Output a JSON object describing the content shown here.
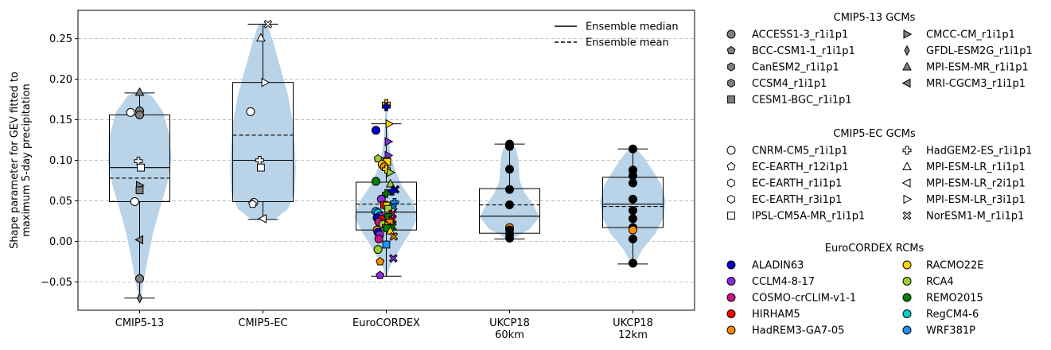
{
  "chart_data": {
    "type": "violin+box+strip",
    "ylabel_lines": [
      "Shape parameter for GEV fitted to",
      "maximum 5-day precipitation"
    ],
    "ylim": [
      -0.085,
      0.285
    ],
    "yticks": [
      -0.05,
      0.0,
      0.05,
      0.1,
      0.15,
      0.2,
      0.25
    ],
    "ytick_labels": [
      "−0.05",
      "0.00",
      "0.05",
      "0.10",
      "0.15",
      "0.20",
      "0.25"
    ],
    "grid": "horizontal dashed",
    "categories": [
      [
        "CMIP5-13"
      ],
      [
        "CMIP5-EC"
      ],
      [
        "EuroCORDEX"
      ],
      [
        "UKCP18",
        "60km"
      ],
      [
        "UKCP18",
        "12km"
      ]
    ],
    "violins": [
      {
        "min": -0.07,
        "max": 0.183,
        "profile": [
          [
            -0.07,
            0.02
          ],
          [
            -0.05,
            0.12
          ],
          [
            -0.02,
            0.25
          ],
          [
            0.01,
            0.4
          ],
          [
            0.04,
            0.6
          ],
          [
            0.07,
            0.82
          ],
          [
            0.1,
            0.95
          ],
          [
            0.13,
            0.9
          ],
          [
            0.16,
            0.7
          ],
          [
            0.18,
            0.35
          ],
          [
            0.183,
            0.15
          ]
        ]
      },
      {
        "min": 0.027,
        "max": 0.268,
        "profile": [
          [
            0.027,
            0.35
          ],
          [
            0.04,
            0.75
          ],
          [
            0.06,
            0.95
          ],
          [
            0.09,
            0.98
          ],
          [
            0.12,
            0.95
          ],
          [
            0.15,
            0.88
          ],
          [
            0.18,
            0.75
          ],
          [
            0.21,
            0.55
          ],
          [
            0.24,
            0.35
          ],
          [
            0.26,
            0.2
          ],
          [
            0.268,
            0.12
          ]
        ]
      },
      {
        "min": -0.043,
        "max": 0.17,
        "profile": [
          [
            -0.043,
            0.02
          ],
          [
            -0.03,
            0.12
          ],
          [
            -0.01,
            0.4
          ],
          [
            0.01,
            0.7
          ],
          [
            0.03,
            0.95
          ],
          [
            0.05,
            0.78
          ],
          [
            0.07,
            0.45
          ],
          [
            0.09,
            0.25
          ],
          [
            0.11,
            0.12
          ],
          [
            0.14,
            0.05
          ],
          [
            0.17,
            0.02
          ]
        ]
      },
      {
        "min": 0.003,
        "max": 0.12,
        "profile": [
          [
            0.003,
            0.08
          ],
          [
            0.015,
            0.6
          ],
          [
            0.03,
            0.9
          ],
          [
            0.045,
            0.7
          ],
          [
            0.06,
            0.45
          ],
          [
            0.075,
            0.3
          ],
          [
            0.09,
            0.28
          ],
          [
            0.105,
            0.25
          ],
          [
            0.115,
            0.18
          ],
          [
            0.12,
            0.08
          ]
        ]
      },
      {
        "min": -0.028,
        "max": 0.114,
        "profile": [
          [
            -0.028,
            0.05
          ],
          [
            -0.01,
            0.28
          ],
          [
            0.01,
            0.68
          ],
          [
            0.03,
            0.92
          ],
          [
            0.05,
            0.98
          ],
          [
            0.07,
            0.85
          ],
          [
            0.09,
            0.55
          ],
          [
            0.105,
            0.3
          ],
          [
            0.114,
            0.1
          ]
        ]
      }
    ],
    "boxes": [
      {
        "q1": 0.049,
        "median": 0.091,
        "q3": 0.156,
        "mean": 0.078,
        "whisker_low": -0.07,
        "whisker_high": 0.183
      },
      {
        "q1": 0.049,
        "median": 0.1,
        "q3": 0.196,
        "mean": 0.131,
        "whisker_low": 0.027,
        "whisker_high": 0.268
      },
      {
        "q1": 0.014,
        "median": 0.036,
        "q3": 0.073,
        "mean": 0.046,
        "whisker_low": -0.043,
        "whisker_high": 0.145
      },
      {
        "q1": 0.01,
        "median": 0.031,
        "q3": 0.065,
        "mean": 0.045,
        "whisker_low": 0.003,
        "whisker_high": 0.12
      },
      {
        "q1": 0.017,
        "median": 0.046,
        "q3": 0.079,
        "mean": 0.043,
        "whisker_low": -0.028,
        "whisker_high": 0.114
      }
    ],
    "points": [
      {
        "cat": 0,
        "dx": 0.0,
        "y": 0.184,
        "m": "^",
        "c": "#808080"
      },
      {
        "cat": 0,
        "dx": -0.22,
        "y": 0.159,
        "m": "o",
        "c": "#ffffff"
      },
      {
        "cat": 0,
        "dx": 0.0,
        "y": 0.161,
        "m": "o",
        "c": "#808080"
      },
      {
        "cat": 0,
        "dx": 0.0,
        "y": 0.156,
        "m": "o",
        "c": "#808080"
      },
      {
        "cat": 0,
        "dx": -0.03,
        "y": 0.099,
        "m": "P",
        "c": "#ffffff"
      },
      {
        "cat": 0,
        "dx": 0.03,
        "y": 0.091,
        "m": "s",
        "c": "#ffffff"
      },
      {
        "cat": 0,
        "dx": 0.0,
        "y": 0.069,
        "m": ">",
        "c": "#808080"
      },
      {
        "cat": 0,
        "dx": 0.0,
        "y": 0.063,
        "m": "s",
        "c": "#808080"
      },
      {
        "cat": 0,
        "dx": -0.12,
        "y": 0.049,
        "m": "o",
        "c": "#ffffff"
      },
      {
        "cat": 0,
        "dx": 0.0,
        "y": 0.002,
        "m": "<",
        "c": "#808080"
      },
      {
        "cat": 0,
        "dx": 0.0,
        "y": -0.046,
        "m": "o",
        "c": "#808080"
      },
      {
        "cat": 0,
        "dx": 0.0,
        "y": -0.07,
        "m": "d",
        "c": "#808080"
      },
      {
        "cat": 1,
        "dx": 0.12,
        "y": 0.268,
        "m": "X",
        "c": "#ffffff"
      },
      {
        "cat": 1,
        "dx": -0.05,
        "y": 0.251,
        "m": "^",
        "c": "#ffffff"
      },
      {
        "cat": 1,
        "dx": 0.05,
        "y": 0.196,
        "m": ">",
        "c": "#ffffff"
      },
      {
        "cat": 1,
        "dx": -0.3,
        "y": 0.16,
        "m": "o",
        "c": "#ffffff"
      },
      {
        "cat": 1,
        "dx": -0.08,
        "y": 0.1,
        "m": "P",
        "c": "#ffffff"
      },
      {
        "cat": 1,
        "dx": -0.05,
        "y": 0.091,
        "m": "s",
        "c": "#ffffff"
      },
      {
        "cat": 1,
        "dx": -0.22,
        "y": 0.048,
        "m": "o",
        "c": "#ffffff"
      },
      {
        "cat": 1,
        "dx": -0.25,
        "y": 0.046,
        "m": "p",
        "c": "#ffffff"
      },
      {
        "cat": 1,
        "dx": 0.0,
        "y": 0.028,
        "m": "<",
        "c": "#ffffff"
      },
      {
        "cat": 2,
        "dx": 0.0,
        "y": 0.17,
        "m": "P",
        "c": "#ffd700"
      },
      {
        "cat": 2,
        "dx": 0.0,
        "y": 0.166,
        "m": "P",
        "c": "#0000cd"
      },
      {
        "cat": 2,
        "dx": 0.07,
        "y": 0.145,
        "m": ">",
        "c": "#ffd700"
      },
      {
        "cat": 2,
        "dx": -0.25,
        "y": 0.137,
        "m": "o",
        "c": "#0000cd"
      },
      {
        "cat": 2,
        "dx": 0.05,
        "y": 0.123,
        "m": ">",
        "c": "#8a2be2"
      },
      {
        "cat": 2,
        "dx": 0.05,
        "y": 0.106,
        "m": ">",
        "c": "#8a2be2"
      },
      {
        "cat": 2,
        "dx": -0.2,
        "y": 0.102,
        "m": "p",
        "c": "#9acd32"
      },
      {
        "cat": 2,
        "dx": 0.0,
        "y": 0.099,
        "m": "s",
        "c": "#ff0000"
      },
      {
        "cat": 2,
        "dx": 0.02,
        "y": 0.098,
        "m": "s",
        "c": "#ffd700"
      },
      {
        "cat": 2,
        "dx": -0.1,
        "y": 0.095,
        "m": "o",
        "c": "#ffd700"
      },
      {
        "cat": 2,
        "dx": -0.05,
        "y": 0.092,
        "m": "o",
        "c": "#ff8c00"
      },
      {
        "cat": 2,
        "dx": 0.0,
        "y": 0.089,
        "m": "P",
        "c": "#ffd700"
      },
      {
        "cat": 2,
        "dx": 0.1,
        "y": 0.085,
        "m": ">",
        "c": "#9acd32"
      },
      {
        "cat": 2,
        "dx": -0.25,
        "y": 0.074,
        "m": "o",
        "c": "#008000"
      },
      {
        "cat": 2,
        "dx": 0.1,
        "y": 0.071,
        "m": "^",
        "c": "#9acd32"
      },
      {
        "cat": 2,
        "dx": 0.22,
        "y": 0.064,
        "m": "X",
        "c": "#0000cd"
      },
      {
        "cat": 2,
        "dx": 0.15,
        "y": 0.062,
        "m": "P",
        "c": "#0000cd"
      },
      {
        "cat": 2,
        "dx": 0.0,
        "y": 0.059,
        "m": "P",
        "c": "#008000"
      },
      {
        "cat": 2,
        "dx": -0.12,
        "y": 0.052,
        "m": "o",
        "c": "#8a2be2"
      },
      {
        "cat": 2,
        "dx": 0.2,
        "y": 0.048,
        "m": "P",
        "c": "#1e90ff"
      },
      {
        "cat": 2,
        "dx": -0.05,
        "y": 0.045,
        "m": "s",
        "c": "#ff0000"
      },
      {
        "cat": 2,
        "dx": 0.02,
        "y": 0.044,
        "m": "s",
        "c": "#ffd700"
      },
      {
        "cat": 2,
        "dx": 0.17,
        "y": 0.043,
        "m": "X",
        "c": "#1e90ff"
      },
      {
        "cat": 2,
        "dx": 0.05,
        "y": 0.04,
        "m": "s",
        "c": "#9acd32"
      },
      {
        "cat": 2,
        "dx": -0.25,
        "y": 0.037,
        "m": "o",
        "c": "#1e90ff"
      },
      {
        "cat": 2,
        "dx": -0.2,
        "y": 0.035,
        "m": "o",
        "c": "#00ced1"
      },
      {
        "cat": 2,
        "dx": 0.15,
        "y": 0.034,
        "m": "X",
        "c": "#c71585"
      },
      {
        "cat": 2,
        "dx": -0.15,
        "y": 0.031,
        "m": "o",
        "c": "#8a2be2"
      },
      {
        "cat": 2,
        "dx": -0.22,
        "y": 0.029,
        "m": "o",
        "c": "#0000cd"
      },
      {
        "cat": 2,
        "dx": 0.05,
        "y": 0.03,
        "m": "s",
        "c": "#008000"
      },
      {
        "cat": 2,
        "dx": -0.12,
        "y": 0.027,
        "m": "o",
        "c": "#ff0000"
      },
      {
        "cat": 2,
        "dx": 0.15,
        "y": 0.027,
        "m": "X",
        "c": "#ff0000"
      },
      {
        "cat": 2,
        "dx": -0.18,
        "y": 0.024,
        "m": "o",
        "c": "#c71585"
      },
      {
        "cat": 2,
        "dx": 0.08,
        "y": 0.023,
        "m": "s",
        "c": "#ff8c00"
      },
      {
        "cat": 2,
        "dx": -0.08,
        "y": 0.021,
        "m": "o",
        "c": "#9acd32"
      },
      {
        "cat": 2,
        "dx": 0.0,
        "y": 0.019,
        "m": "P",
        "c": "#ff8c00"
      },
      {
        "cat": 2,
        "dx": 0.15,
        "y": 0.018,
        "m": "X",
        "c": "#008000"
      },
      {
        "cat": 2,
        "dx": 0.02,
        "y": 0.016,
        "m": "s",
        "c": "#008000"
      },
      {
        "cat": 2,
        "dx": -0.22,
        "y": 0.014,
        "m": "o",
        "c": "#ff8c00"
      },
      {
        "cat": 2,
        "dx": 0.1,
        "y": 0.013,
        "m": "^",
        "c": "#ffd700"
      },
      {
        "cat": 2,
        "dx": -0.2,
        "y": 0.011,
        "m": "o",
        "c": "#0000cd"
      },
      {
        "cat": 2,
        "dx": -0.16,
        "y": 0.008,
        "m": "o",
        "c": "#8a2be2"
      },
      {
        "cat": 2,
        "dx": 0.18,
        "y": 0.006,
        "m": "X",
        "c": "#ff8c00"
      },
      {
        "cat": 2,
        "dx": -0.18,
        "y": 0.003,
        "m": "o",
        "c": "#c71585"
      },
      {
        "cat": 2,
        "dx": -0.2,
        "y": -0.01,
        "m": "o",
        "c": "#9acd32"
      },
      {
        "cat": 2,
        "dx": 0.0,
        "y": -0.004,
        "m": "s",
        "c": "#1e90ff"
      },
      {
        "cat": 2,
        "dx": 0.17,
        "y": -0.021,
        "m": "X",
        "c": "#8a2be2"
      },
      {
        "cat": 2,
        "dx": -0.15,
        "y": -0.025,
        "m": "p",
        "c": "#ff8c00"
      },
      {
        "cat": 2,
        "dx": -0.15,
        "y": -0.042,
        "m": "p",
        "c": "#8a2be2"
      },
      {
        "cat": 3,
        "dx": 0.0,
        "y": 0.12,
        "m": "o",
        "c": "#000000"
      },
      {
        "cat": 3,
        "dx": 0.0,
        "y": 0.117,
        "m": "o",
        "c": "#000000"
      },
      {
        "cat": 3,
        "dx": 0.0,
        "y": 0.089,
        "m": "o",
        "c": "#000000"
      },
      {
        "cat": 3,
        "dx": 0.0,
        "y": 0.064,
        "m": "o",
        "c": "#000000"
      },
      {
        "cat": 3,
        "dx": 0.0,
        "y": 0.045,
        "m": "o",
        "c": "#000000"
      },
      {
        "cat": 3,
        "dx": 0.0,
        "y": 0.017,
        "m": "o",
        "c": "#ff8c00"
      },
      {
        "cat": 3,
        "dx": 0.0,
        "y": 0.014,
        "m": "o",
        "c": "#000000"
      },
      {
        "cat": 3,
        "dx": 0.0,
        "y": 0.009,
        "m": "o",
        "c": "#000000"
      },
      {
        "cat": 3,
        "dx": 0.0,
        "y": 0.004,
        "m": "o",
        "c": "#000000"
      },
      {
        "cat": 4,
        "dx": 0.0,
        "y": 0.114,
        "m": "o",
        "c": "#000000"
      },
      {
        "cat": 4,
        "dx": 0.0,
        "y": 0.088,
        "m": "o",
        "c": "#000000"
      },
      {
        "cat": 4,
        "dx": 0.0,
        "y": 0.081,
        "m": "o",
        "c": "#000000"
      },
      {
        "cat": 4,
        "dx": 0.0,
        "y": 0.072,
        "m": "o",
        "c": "#000000"
      },
      {
        "cat": 4,
        "dx": 0.0,
        "y": 0.052,
        "m": "o",
        "c": "#000000"
      },
      {
        "cat": 4,
        "dx": 0.0,
        "y": 0.038,
        "m": "o",
        "c": "#000000"
      },
      {
        "cat": 4,
        "dx": 0.0,
        "y": 0.028,
        "m": "o",
        "c": "#000000"
      },
      {
        "cat": 4,
        "dx": 0.0,
        "y": 0.017,
        "m": "o",
        "c": "#000000"
      },
      {
        "cat": 4,
        "dx": 0.0,
        "y": 0.014,
        "m": "o",
        "c": "#ff8c00"
      },
      {
        "cat": 4,
        "dx": 0.0,
        "y": 0.003,
        "m": "o",
        "c": "#000000"
      },
      {
        "cat": 4,
        "dx": 0.0,
        "y": -0.027,
        "m": "o",
        "c": "#000000"
      }
    ],
    "colors": {
      "violin": "#b9d3e8",
      "grid": "#b0b0b0"
    },
    "plot_legend": {
      "placement": "top-right",
      "entries": [
        {
          "label": "Ensemble median",
          "style": "solid"
        },
        {
          "label": "Ensemble mean",
          "style": "dashed"
        }
      ]
    },
    "legend_groups": [
      {
        "title": "CMIP5-13 GCMs",
        "col1": [
          {
            "label": "ACCESS1-3_r1i1p1",
            "m": "o",
            "c": "#808080"
          },
          {
            "label": "BCC-CSM1-1_r1i1p1",
            "m": "p",
            "c": "#808080"
          },
          {
            "label": "CanESM2_r1i1p1",
            "m": "h",
            "c": "#808080"
          },
          {
            "label": "CCSM4_r1i1p1",
            "m": "h",
            "c": "#808080"
          },
          {
            "label": "CESM1-BGC_r1i1p1",
            "m": "s",
            "c": "#808080"
          }
        ],
        "col2": [
          {
            "label": "CMCC-CM_r1i1p1",
            "m": ">",
            "c": "#808080"
          },
          {
            "label": "GFDL-ESM2G_r1i1p1",
            "m": "d",
            "c": "#808080"
          },
          {
            "label": "MPI-ESM-MR_r1i1p1",
            "m": "^",
            "c": "#808080"
          },
          {
            "label": "MRI-CGCM3_r1i1p1",
            "m": "<",
            "c": "#808080"
          }
        ]
      },
      {
        "title": "CMIP5-EC GCMs",
        "col1": [
          {
            "label": "CNRM-CM5_r1i1p1",
            "m": "o",
            "c": "#ffffff"
          },
          {
            "label": "EC-EARTH_r12i1p1",
            "m": "p",
            "c": "#ffffff"
          },
          {
            "label": "EC-EARTH_r1i1p1",
            "m": "h",
            "c": "#ffffff"
          },
          {
            "label": "EC-EARTH_r3i1p1",
            "m": "h",
            "c": "#ffffff"
          },
          {
            "label": "IPSL-CM5A-MR_r1i1p1",
            "m": "s",
            "c": "#ffffff"
          }
        ],
        "col2": [
          {
            "label": "HadGEM2-ES_r1i1p1",
            "m": "P",
            "c": "#ffffff"
          },
          {
            "label": "MPI-ESM-LR_r1i1p1",
            "m": "^",
            "c": "#ffffff"
          },
          {
            "label": "MPI-ESM-LR_r2i1p1",
            "m": "<",
            "c": "#ffffff"
          },
          {
            "label": "MPI-ESM-LR_r3i1p1",
            "m": ">",
            "c": "#ffffff"
          },
          {
            "label": "NorESM1-M_r1i1p1",
            "m": "X",
            "c": "#ffffff"
          }
        ]
      },
      {
        "title": "EuroCORDEX RCMs",
        "col1": [
          {
            "label": "ALADIN63",
            "m": "o",
            "c": "#0000cd"
          },
          {
            "label": "CCLM4-8-17",
            "m": "o",
            "c": "#8a2be2"
          },
          {
            "label": "COSMO-crCLIM-v1-1",
            "m": "o",
            "c": "#c71585"
          },
          {
            "label": "HIRHAM5",
            "m": "o",
            "c": "#ff0000"
          },
          {
            "label": "HadREM3-GA7-05",
            "m": "o",
            "c": "#ff8c00"
          }
        ],
        "col2": [
          {
            "label": "RACMO22E",
            "m": "o",
            "c": "#ffd700"
          },
          {
            "label": "RCA4",
            "m": "o",
            "c": "#9acd32"
          },
          {
            "label": "REMO2015",
            "m": "o",
            "c": "#008000"
          },
          {
            "label": "RegCM4-6",
            "m": "o",
            "c": "#00ced1"
          },
          {
            "label": "WRF381P",
            "m": "o",
            "c": "#1e90ff"
          }
        ]
      }
    ]
  }
}
